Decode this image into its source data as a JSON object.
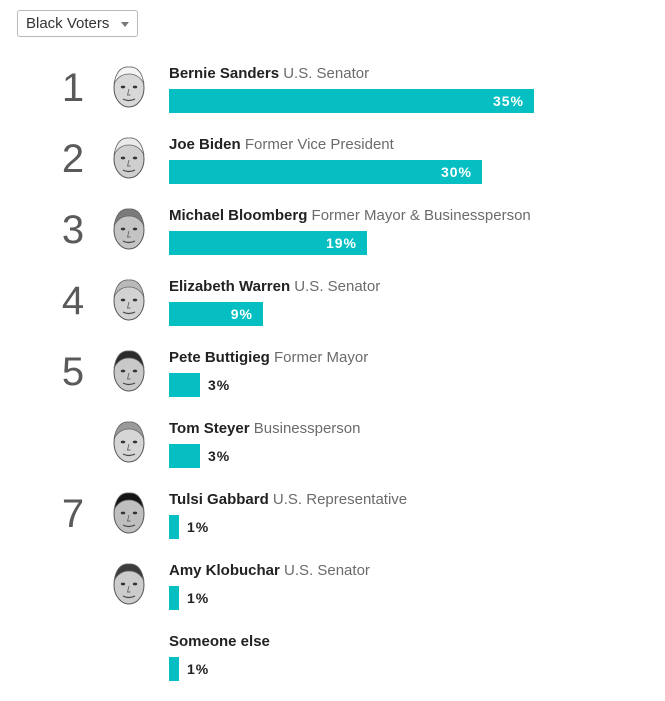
{
  "filter": {
    "selected": "Black Voters"
  },
  "chart_data": {
    "type": "bar",
    "orientation": "horizontal",
    "value_suffix": "%",
    "xlim": [
      0,
      35
    ],
    "rows": [
      {
        "rank": "1",
        "name": "Bernie Sanders",
        "title": "U.S. Senator",
        "value": 35,
        "value_label": "35%",
        "avatar_icon": "bernie-sanders-portrait-icon"
      },
      {
        "rank": "2",
        "name": "Joe Biden",
        "title": "Former Vice President",
        "value": 30,
        "value_label": "30%",
        "avatar_icon": "joe-biden-portrait-icon"
      },
      {
        "rank": "3",
        "name": "Michael Bloomberg",
        "title": "Former Mayor & Businessperson",
        "value": 19,
        "value_label": "19%",
        "avatar_icon": "michael-bloomberg-portrait-icon"
      },
      {
        "rank": "4",
        "name": "Elizabeth Warren",
        "title": "U.S. Senator",
        "value": 9,
        "value_label": "9%",
        "avatar_icon": "elizabeth-warren-portrait-icon"
      },
      {
        "rank": "5",
        "name": "Pete Buttigieg",
        "title": "Former Mayor",
        "value": 3,
        "value_label": "3%",
        "avatar_icon": "pete-buttigieg-portrait-icon"
      },
      {
        "rank": "",
        "name": "Tom Steyer",
        "title": "Businessperson",
        "value": 3,
        "value_label": "3%",
        "avatar_icon": "tom-steyer-portrait-icon"
      },
      {
        "rank": "7",
        "name": "Tulsi Gabbard",
        "title": "U.S. Representative",
        "value": 1,
        "value_label": "1%",
        "avatar_icon": "tulsi-gabbard-portrait-icon"
      },
      {
        "rank": "",
        "name": "Amy Klobuchar",
        "title": "U.S. Senator",
        "value": 1,
        "value_label": "1%",
        "avatar_icon": "amy-klobuchar-portrait-icon"
      },
      {
        "rank": "",
        "name": "Someone else",
        "title": "",
        "value": 1,
        "value_label": "1%",
        "avatar_icon": ""
      }
    ]
  },
  "colors": {
    "bar": "#05bfc3",
    "rank": "#5a5a5a",
    "name": "#222222",
    "title": "#6b6b6b"
  }
}
